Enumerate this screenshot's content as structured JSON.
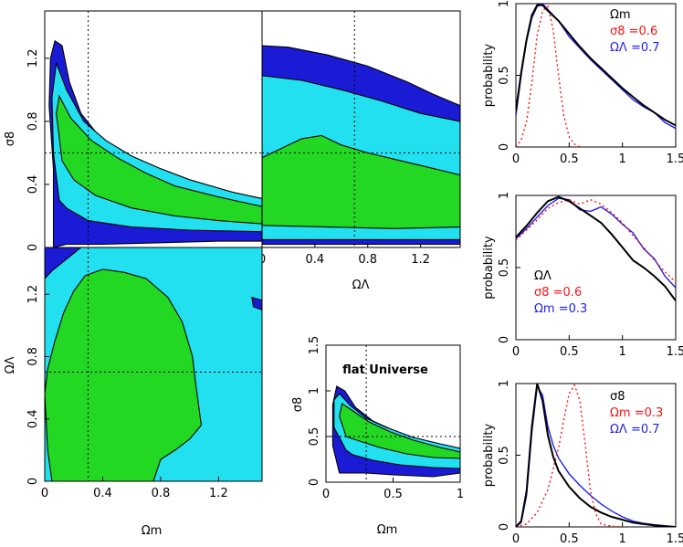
{
  "colors": {
    "dark_blue": "#1b1bd6",
    "cyan": "#22e0ef",
    "green": "#22d822",
    "black": "#000000",
    "red": "#ff1010",
    "blue": "#2020e8"
  },
  "chart_data": [
    {
      "id": "contour_om_s8",
      "type": "heatmap",
      "xlabel": "",
      "ylabel": "σ8",
      "xlim": [
        0,
        1.5
      ],
      "ylim": [
        0,
        1.5
      ],
      "xticks": [],
      "yticks": [
        "0",
        "0.4",
        "0.8",
        "1.2"
      ],
      "fiducial": {
        "x": 0.3,
        "y": 0.6
      },
      "levels": [
        "outer",
        "middle",
        "inner"
      ]
    },
    {
      "id": "contour_ol_s8",
      "type": "heatmap",
      "xlabel": "ΩΛ",
      "ylabel": "",
      "xlim": [
        0,
        1.5
      ],
      "ylim": [
        0,
        1.5
      ],
      "xticks": [
        "0",
        "0.4",
        "0.8",
        "1.2"
      ],
      "yticks": [],
      "fiducial": {
        "x": 0.7,
        "y": 0.6
      },
      "levels": [
        "outer",
        "middle",
        "inner"
      ]
    },
    {
      "id": "contour_om_ol",
      "type": "heatmap",
      "xlabel": "Ωm",
      "ylabel": "ΩΛ",
      "xlim": [
        0,
        1.5
      ],
      "ylim": [
        0,
        1.5
      ],
      "xticks": [
        "0",
        "0.4",
        "0.8",
        "1.2"
      ],
      "yticks": [
        "0",
        "0.4",
        "0.8",
        "1.2"
      ],
      "fiducial": {
        "x": 0.3,
        "y": 0.7
      },
      "levels": [
        "outer",
        "middle",
        "inner"
      ]
    },
    {
      "id": "contour_flat",
      "type": "heatmap",
      "title": "flat Universe",
      "xlabel": "Ωm",
      "ylabel": "σ8",
      "xlim": [
        0,
        1.0
      ],
      "ylim": [
        0,
        1.5
      ],
      "xticks": [
        "0",
        "0.5",
        "1"
      ],
      "yticks": [
        "0",
        "0.5",
        "1",
        "1.5"
      ],
      "fiducial": {
        "x": 0.3,
        "y": 0.5
      },
      "levels": [
        "outer",
        "middle",
        "inner"
      ]
    },
    {
      "id": "prob_om",
      "type": "line",
      "ylabel": "probability",
      "xlim": [
        0,
        1.5
      ],
      "ylim": [
        0,
        1
      ],
      "xticks": [
        "0",
        "0.5",
        "1",
        "1.5"
      ],
      "yticks": [
        "0",
        "0.5",
        "1"
      ],
      "legend": {
        "title": "Ωm",
        "lines": [
          {
            "label": "σ8 =0.6",
            "color": "#ff1010"
          },
          {
            "label": "ΩΛ =0.7",
            "color": "#2020e8"
          }
        ]
      },
      "series": [
        {
          "name": "marginal",
          "color": "#000000",
          "style": "solid",
          "x": [
            0,
            0.05,
            0.1,
            0.15,
            0.2,
            0.25,
            0.3,
            0.4,
            0.5,
            0.6,
            0.7,
            0.8,
            0.9,
            1.0,
            1.1,
            1.2,
            1.3,
            1.4,
            1.5
          ],
          "y": [
            0.25,
            0.52,
            0.75,
            0.92,
            0.99,
            0.99,
            0.95,
            0.88,
            0.79,
            0.7,
            0.62,
            0.55,
            0.48,
            0.41,
            0.35,
            0.29,
            0.24,
            0.19,
            0.15
          ]
        },
        {
          "name": "σ8 =0.6",
          "color": "#ff1010",
          "style": "dotted",
          "x": [
            0,
            0.05,
            0.1,
            0.15,
            0.2,
            0.25,
            0.3,
            0.35,
            0.4,
            0.45,
            0.5,
            0.55,
            0.6
          ],
          "y": [
            0,
            0.05,
            0.18,
            0.45,
            0.78,
            0.95,
            0.98,
            0.82,
            0.5,
            0.22,
            0.07,
            0.02,
            0
          ]
        },
        {
          "name": "ΩΛ =0.7",
          "color": "#2020e8",
          "style": "solid",
          "x": [
            0,
            0.05,
            0.1,
            0.15,
            0.2,
            0.25,
            0.3,
            0.4,
            0.5,
            0.6,
            0.7,
            0.8,
            0.9,
            1.0,
            1.1,
            1.2,
            1.3,
            1.4,
            1.5
          ],
          "y": [
            0.22,
            0.5,
            0.74,
            0.9,
            0.98,
            1.0,
            0.96,
            0.88,
            0.77,
            0.69,
            0.61,
            0.54,
            0.47,
            0.4,
            0.33,
            0.28,
            0.24,
            0.17,
            0.13
          ]
        }
      ]
    },
    {
      "id": "prob_ol",
      "type": "line",
      "ylabel": "probability",
      "xlim": [
        0,
        1.5
      ],
      "ylim": [
        0,
        1
      ],
      "xticks": [
        "0",
        "0.5",
        "1",
        "1.5"
      ],
      "yticks": [
        "0",
        "0.5",
        "1"
      ],
      "legend": {
        "title": "ΩΛ",
        "lines": [
          {
            "label": "σ8 =0.6",
            "color": "#ff1010"
          },
          {
            "label": "Ωm =0.3",
            "color": "#2020e8"
          }
        ]
      },
      "series": [
        {
          "name": "marginal",
          "color": "#000000",
          "style": "solid",
          "x": [
            0,
            0.1,
            0.2,
            0.3,
            0.4,
            0.5,
            0.6,
            0.7,
            0.8,
            0.9,
            1.0,
            1.1,
            1.2,
            1.3,
            1.4,
            1.5
          ],
          "y": [
            0.71,
            0.79,
            0.88,
            0.96,
            0.99,
            0.96,
            0.91,
            0.86,
            0.81,
            0.73,
            0.64,
            0.55,
            0.5,
            0.44,
            0.37,
            0.27
          ]
        },
        {
          "name": "σ8 =0.6",
          "color": "#ff1010",
          "style": "dotted",
          "x": [
            0,
            0.1,
            0.2,
            0.3,
            0.4,
            0.5,
            0.6,
            0.7,
            0.8,
            0.9,
            1.0,
            1.1,
            1.2,
            1.3,
            1.4,
            1.5
          ],
          "y": [
            0.69,
            0.76,
            0.83,
            0.91,
            0.95,
            0.97,
            0.94,
            0.97,
            0.94,
            0.88,
            0.81,
            0.72,
            0.64,
            0.55,
            0.47,
            0.4
          ]
        },
        {
          "name": "Ωm =0.3",
          "color": "#2020e8",
          "style": "solid",
          "x": [
            0,
            0.1,
            0.2,
            0.3,
            0.4,
            0.5,
            0.6,
            0.7,
            0.8,
            0.9,
            1.0,
            1.1,
            1.2,
            1.3,
            1.4,
            1.5
          ],
          "y": [
            0.7,
            0.77,
            0.85,
            0.93,
            0.98,
            0.97,
            0.9,
            0.89,
            0.92,
            0.87,
            0.8,
            0.74,
            0.63,
            0.56,
            0.44,
            0.36
          ]
        }
      ]
    },
    {
      "id": "prob_s8",
      "type": "line",
      "ylabel": "probability",
      "xlim": [
        0,
        1.5
      ],
      "ylim": [
        0,
        1
      ],
      "xticks": [
        "0",
        "0.5",
        "1",
        "1.5"
      ],
      "yticks": [
        "0",
        "0.5",
        "1"
      ],
      "legend": {
        "title": "σ8",
        "lines": [
          {
            "label": "Ωm =0.3",
            "color": "#ff1010"
          },
          {
            "label": "ΩΛ =0.7",
            "color": "#2020e8"
          }
        ]
      },
      "series": [
        {
          "name": "marginal",
          "color": "#000000",
          "style": "solid",
          "x": [
            0,
            0.05,
            0.1,
            0.15,
            0.2,
            0.25,
            0.3,
            0.35,
            0.4,
            0.5,
            0.6,
            0.7,
            0.8,
            0.9,
            1.0,
            1.1,
            1.2,
            1.3,
            1.4,
            1.5
          ],
          "y": [
            0,
            0.04,
            0.25,
            0.7,
            1.0,
            0.88,
            0.64,
            0.49,
            0.39,
            0.28,
            0.2,
            0.14,
            0.1,
            0.07,
            0.05,
            0.03,
            0.02,
            0.01,
            0.005,
            0
          ]
        },
        {
          "name": "Ωm =0.3",
          "color": "#ff1010",
          "style": "dotted",
          "x": [
            0,
            0.1,
            0.2,
            0.3,
            0.4,
            0.45,
            0.5,
            0.55,
            0.6,
            0.65,
            0.7,
            0.75,
            0.8,
            0.9,
            1.0
          ],
          "y": [
            0,
            0.02,
            0.1,
            0.26,
            0.55,
            0.75,
            0.93,
            0.99,
            0.88,
            0.58,
            0.25,
            0.09,
            0.02,
            0.005,
            0
          ]
        },
        {
          "name": "ΩΛ =0.7",
          "color": "#2020e8",
          "style": "solid",
          "x": [
            0,
            0.05,
            0.1,
            0.15,
            0.2,
            0.25,
            0.3,
            0.35,
            0.4,
            0.5,
            0.6,
            0.7,
            0.8,
            0.9,
            1.0,
            1.1,
            1.2,
            1.3,
            1.4,
            1.5
          ],
          "y": [
            0,
            0.03,
            0.22,
            0.66,
            0.98,
            0.92,
            0.7,
            0.57,
            0.48,
            0.37,
            0.29,
            0.22,
            0.16,
            0.11,
            0.07,
            0.04,
            0.025,
            0.015,
            0.008,
            0
          ]
        }
      ]
    }
  ]
}
